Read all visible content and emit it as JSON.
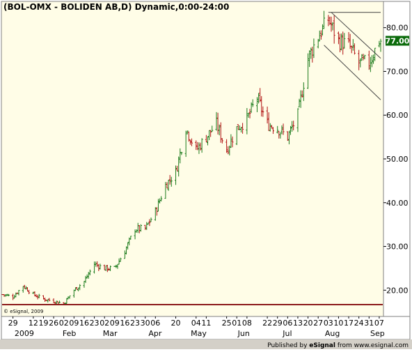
{
  "title": "(BOL-OMX - BOLIDEN AB,D) Dynamic,0:00-24:00",
  "copyright": "© eSignal, 2009",
  "footer": {
    "published_prefix": "Published by ",
    "provider": "eSignal",
    "suffix": " from www.esignal.com"
  },
  "colors": {
    "plot_bg": "#fffde7",
    "axis_bg": "#ffffff",
    "up_bar": "#1a7a1a",
    "down_bar": "#b01010",
    "last_price_box": "#0b6b0b",
    "baseline": "#8b1a1a",
    "trend_line": "#444444"
  },
  "chart_data": {
    "type": "ohlc",
    "title": "(BOL-OMX - BOLIDEN AB,D) Dynamic,0:00-24:00",
    "xlabel": "",
    "ylabel": "",
    "ylim": [
      14,
      86
    ],
    "y_ticks": [
      20,
      30,
      40,
      50,
      60,
      70,
      80
    ],
    "y_tick_labels": [
      "20.00",
      "30.00",
      "40.00",
      "50.00",
      "60.00",
      "70.00",
      "80.00"
    ],
    "last_price": 77.0,
    "last_price_label": "77.00",
    "x_range": [
      "2008-12-22",
      "2009-09-08"
    ],
    "day_ticks": [
      {
        "date": "2008-12-29",
        "label": "29"
      },
      {
        "date": "2009-01-12",
        "label": "12"
      },
      {
        "date": "2009-01-19",
        "label": "19"
      },
      {
        "date": "2009-01-26",
        "label": "26"
      },
      {
        "date": "2009-02-02",
        "label": "02"
      },
      {
        "date": "2009-02-09",
        "label": "09"
      },
      {
        "date": "2009-02-16",
        "label": "16"
      },
      {
        "date": "2009-02-23",
        "label": "23"
      },
      {
        "date": "2009-03-02",
        "label": "02"
      },
      {
        "date": "2009-03-09",
        "label": "09"
      },
      {
        "date": "2009-03-16",
        "label": "16"
      },
      {
        "date": "2009-03-23",
        "label": "23"
      },
      {
        "date": "2009-03-30",
        "label": "30"
      },
      {
        "date": "2009-04-06",
        "label": "06"
      },
      {
        "date": "2009-04-20",
        "label": "20"
      },
      {
        "date": "2009-05-04",
        "label": "04"
      },
      {
        "date": "2009-05-11",
        "label": "11"
      },
      {
        "date": "2009-05-25",
        "label": "25"
      },
      {
        "date": "2009-06-01",
        "label": "01"
      },
      {
        "date": "2009-06-08",
        "label": "08"
      },
      {
        "date": "2009-06-22",
        "label": "22"
      },
      {
        "date": "2009-06-29",
        "label": "29"
      },
      {
        "date": "2009-07-06",
        "label": "06"
      },
      {
        "date": "2009-07-13",
        "label": "13"
      },
      {
        "date": "2009-07-20",
        "label": "20"
      },
      {
        "date": "2009-07-27",
        "label": "27"
      },
      {
        "date": "2009-08-03",
        "label": "03"
      },
      {
        "date": "2009-08-10",
        "label": "10"
      },
      {
        "date": "2009-08-17",
        "label": "17"
      },
      {
        "date": "2009-08-24",
        "label": "24"
      },
      {
        "date": "2009-08-31",
        "label": "31"
      },
      {
        "date": "2009-09-07",
        "label": "07"
      }
    ],
    "month_ticks": [
      {
        "date": "2009-01-01",
        "label": "2009"
      },
      {
        "date": "2009-02-01",
        "label": "Feb"
      },
      {
        "date": "2009-03-01",
        "label": "Mar"
      },
      {
        "date": "2009-04-01",
        "label": "Apr"
      },
      {
        "date": "2009-05-01",
        "label": "May"
      },
      {
        "date": "2009-06-01",
        "label": "Jun"
      },
      {
        "date": "2009-07-01",
        "label": "Jul"
      },
      {
        "date": "2009-08-01",
        "label": "Aug"
      },
      {
        "date": "2009-09-01",
        "label": "Sep"
      }
    ],
    "weekly_closes": [
      {
        "date": "2008-12-22",
        "close": 19.0
      },
      {
        "date": "2008-12-29",
        "close": 18.5
      },
      {
        "date": "2009-01-05",
        "close": 21.0
      },
      {
        "date": "2009-01-12",
        "close": 19.0
      },
      {
        "date": "2009-01-19",
        "close": 18.0
      },
      {
        "date": "2009-01-26",
        "close": 17.5
      },
      {
        "date": "2009-02-02",
        "close": 17.0
      },
      {
        "date": "2009-02-09",
        "close": 20.0
      },
      {
        "date": "2009-02-16",
        "close": 22.0
      },
      {
        "date": "2009-02-23",
        "close": 26.0
      },
      {
        "date": "2009-03-02",
        "close": 25.0
      },
      {
        "date": "2009-03-09",
        "close": 25.0
      },
      {
        "date": "2009-03-16",
        "close": 29.0
      },
      {
        "date": "2009-03-23",
        "close": 34.0
      },
      {
        "date": "2009-03-30",
        "close": 34.0
      },
      {
        "date": "2009-04-06",
        "close": 38.0
      },
      {
        "date": "2009-04-13",
        "close": 44.0
      },
      {
        "date": "2009-04-20",
        "close": 47.0
      },
      {
        "date": "2009-04-27",
        "close": 57.0
      },
      {
        "date": "2009-05-04",
        "close": 52.0
      },
      {
        "date": "2009-05-11",
        "close": 55.0
      },
      {
        "date": "2009-05-18",
        "close": 58.0
      },
      {
        "date": "2009-05-25",
        "close": 52.0
      },
      {
        "date": "2009-06-01",
        "close": 57.0
      },
      {
        "date": "2009-06-08",
        "close": 59.0
      },
      {
        "date": "2009-06-15",
        "close": 64.0
      },
      {
        "date": "2009-06-22",
        "close": 58.0
      },
      {
        "date": "2009-06-29",
        "close": 57.0
      },
      {
        "date": "2009-07-06",
        "close": 55.0
      },
      {
        "date": "2009-07-13",
        "close": 60.0
      },
      {
        "date": "2009-07-20",
        "close": 73.0
      },
      {
        "date": "2009-07-27",
        "close": 78.0
      },
      {
        "date": "2009-08-03",
        "close": 82.0
      },
      {
        "date": "2009-08-10",
        "close": 77.0
      },
      {
        "date": "2009-08-17",
        "close": 76.0
      },
      {
        "date": "2009-08-24",
        "close": 72.0
      },
      {
        "date": "2009-08-31",
        "close": 72.0
      },
      {
        "date": "2009-09-07",
        "close": 77.0
      }
    ],
    "annotations": [
      {
        "kind": "horizontal_line",
        "from_date": "2009-08-03",
        "to_date": "2009-09-08",
        "price": 83.5
      },
      {
        "kind": "trend_line",
        "from": {
          "date": "2009-08-05",
          "price": 83.5
        },
        "to": {
          "date": "2009-09-08",
          "price": 73.0
        }
      },
      {
        "kind": "trend_line",
        "from": {
          "date": "2009-07-31",
          "price": 76.0
        },
        "to": {
          "date": "2009-09-08",
          "price": 63.5
        }
      }
    ],
    "grid": false,
    "legend": "none"
  }
}
